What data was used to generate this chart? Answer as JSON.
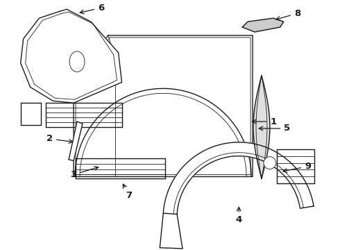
{
  "bg_color": "#ffffff",
  "line_color": "#1a1a1a",
  "lw": 1.0,
  "tlw": 0.6
}
